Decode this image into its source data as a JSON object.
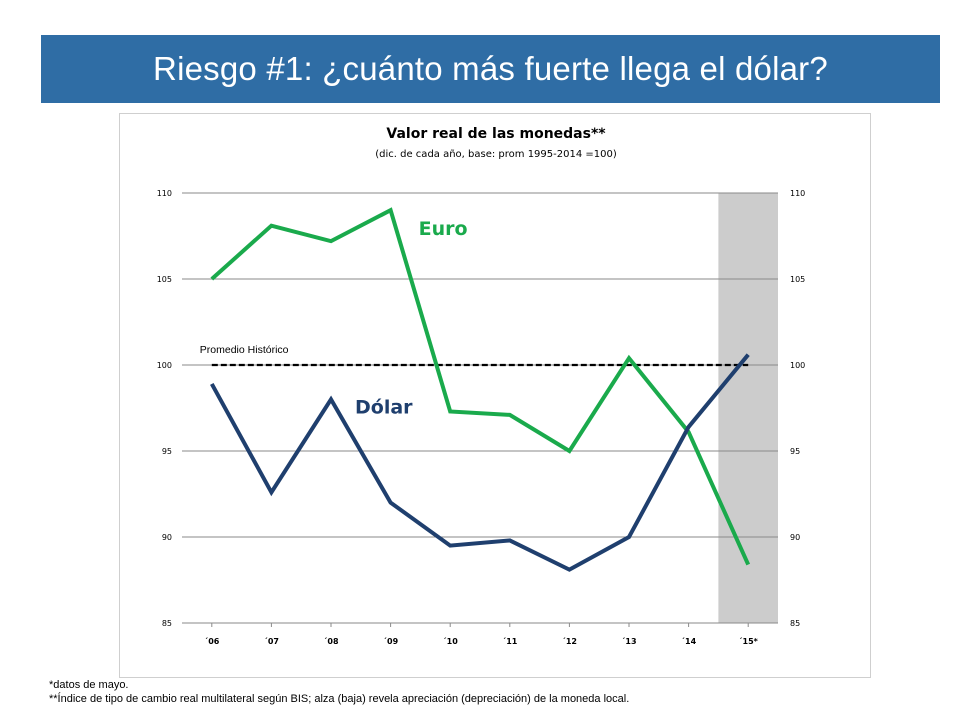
{
  "slide": {
    "title": "Riesgo #1: ¿cuánto más fuerte llega el dólar?",
    "footnote1": "*datos de mayo.",
    "footnote2": "**Índice de tipo de cambio real multilateral según BIS; alza (baja) revela apreciación (depreciación) de la moneda local."
  },
  "chart_data": {
    "type": "line",
    "title": "Valor real de las monedas**",
    "subtitle": "(dic. de cada año, base: prom 1995-2014 =100)",
    "categories": [
      "´06",
      "´07",
      "´08",
      "´09",
      "´10",
      "´11",
      "´12",
      "´13",
      "´14",
      "´15*"
    ],
    "series": [
      {
        "name": "Euro",
        "color": "#1aaa4c",
        "values": [
          105.0,
          108.1,
          107.2,
          109.0,
          97.3,
          97.1,
          95.0,
          100.4,
          96.1,
          88.4
        ]
      },
      {
        "name": "Dólar",
        "color": "#1f3f6e",
        "values": [
          98.9,
          92.6,
          98.0,
          92.0,
          89.5,
          89.8,
          88.1,
          90.0,
          96.4,
          100.6
        ]
      }
    ],
    "reference_line": {
      "label": "Promedio Histórico",
      "value": 100
    },
    "shaded_category": "´15*",
    "ylim": [
      85,
      110
    ],
    "yticks": [
      85,
      90,
      95,
      100,
      105,
      110
    ],
    "secondary_y_axis": true,
    "grid": true,
    "series_label_placement": "inline"
  }
}
